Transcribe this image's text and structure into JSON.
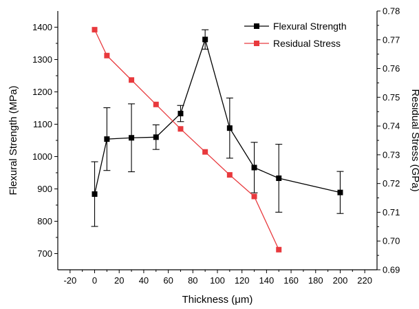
{
  "chart_data": {
    "type": "line",
    "xlabel": "Thickness (μm)",
    "ylabel_left": "Flexural Strength (MPa)",
    "ylabel_right": "Residual Stress (GPa)",
    "xlim": [
      -30,
      230
    ],
    "ylim_left": [
      650,
      1450
    ],
    "ylim_right": [
      0.69,
      0.78
    ],
    "x_ticks": [
      -20,
      0,
      20,
      40,
      60,
      80,
      100,
      120,
      140,
      160,
      180,
      200,
      220
    ],
    "y_left_ticks": [
      700,
      800,
      900,
      1000,
      1100,
      1200,
      1300,
      1400
    ],
    "y_right_ticks": [
      0.69,
      0.7,
      0.71,
      0.72,
      0.73,
      0.74,
      0.75,
      0.76,
      0.77,
      0.78
    ],
    "legend_position": "top-right",
    "grid": false,
    "series": [
      {
        "name": "Flexural Strength",
        "axis": "left",
        "color": "#000000",
        "x": [
          0,
          10,
          30,
          50,
          70,
          90,
          110,
          130,
          150,
          200
        ],
        "y": [
          884,
          1054,
          1058,
          1060,
          1133,
          1362,
          1088,
          966,
          933,
          889
        ],
        "err": [
          100,
          97,
          105,
          38,
          25,
          30,
          93,
          78,
          105,
          65
        ]
      },
      {
        "name": "Residual Stress",
        "axis": "right",
        "color": "#e8393d",
        "x": [
          0,
          10,
          30,
          50,
          70,
          90,
          110,
          130,
          150
        ],
        "y": [
          0.7735,
          0.7645,
          0.756,
          0.7475,
          0.739,
          0.731,
          0.723,
          0.7155,
          0.697
        ]
      }
    ]
  }
}
